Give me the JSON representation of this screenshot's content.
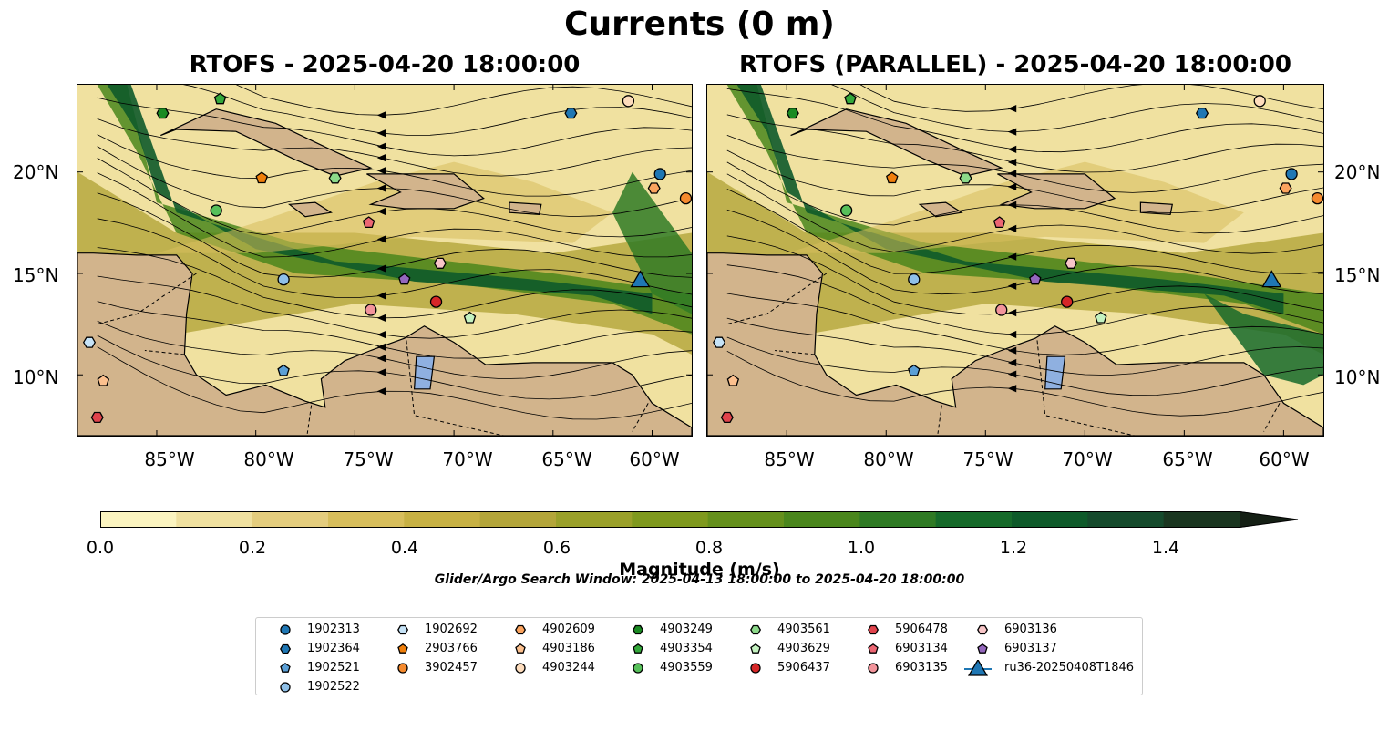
{
  "title": "Currents (0 m)",
  "panels": {
    "left": {
      "title": "RTOFS - 2025-04-20 18:00:00"
    },
    "right": {
      "title": "RTOFS (PARALLEL) - 2025-04-20 18:00:00"
    }
  },
  "map_extent": {
    "lon": [
      -89,
      -58
    ],
    "lat": [
      7,
      24.3
    ]
  },
  "lat_ticks": [
    {
      "value": 20,
      "label": "20°N"
    },
    {
      "value": 15,
      "label": "15°N"
    },
    {
      "value": 10,
      "label": "10°N"
    }
  ],
  "lon_ticks": [
    {
      "value": -85,
      "label": "85°W"
    },
    {
      "value": -80,
      "label": "80°W"
    },
    {
      "value": -75,
      "label": "75°W"
    },
    {
      "value": -70,
      "label": "70°W"
    },
    {
      "value": -65,
      "label": "65°W"
    },
    {
      "value": -60,
      "label": "60°W"
    }
  ],
  "colorbar": {
    "label": "Magnitude (m/s)",
    "range": [
      0,
      1.5
    ],
    "extend": "max",
    "ticks": [
      "0.0",
      "0.2",
      "0.4",
      "0.6",
      "0.8",
      "1.0",
      "1.2",
      "1.4"
    ],
    "colors": [
      "#fbf4c0",
      "#f0e1a0",
      "#e4cd7e",
      "#d7be5c",
      "#c7b144",
      "#b3a53a",
      "#9aa02a",
      "#7f991e",
      "#65901c",
      "#4a861c",
      "#2f7a24",
      "#166a2a",
      "#0e5a2a",
      "#154a2c",
      "#1a3620",
      "#141f14"
    ]
  },
  "search_window": "Glider/Argo Search Window: 2025-04-13 18:00:00 to 2025-04-20 18:00:00",
  "legend": [
    {
      "id": "1902313",
      "marker": "circle",
      "color": "#1f77b4"
    },
    {
      "id": "1902364",
      "marker": "hexagon",
      "color": "#1f77b4"
    },
    {
      "id": "1902521",
      "marker": "pentagon",
      "color": "#5b9fd6"
    },
    {
      "id": "1902522",
      "marker": "circle",
      "color": "#8fc0e8"
    },
    {
      "id": "1902692",
      "marker": "hexagon",
      "color": "#c6e3f7"
    },
    {
      "id": "2903766",
      "marker": "pentagon",
      "color": "#f07f0c"
    },
    {
      "id": "3902457",
      "marker": "circle",
      "color": "#f58a2e"
    },
    {
      "id": "4902609",
      "marker": "hexagon",
      "color": "#fba35e"
    },
    {
      "id": "4903186",
      "marker": "pentagon",
      "color": "#fcc08e"
    },
    {
      "id": "4903244",
      "marker": "circle",
      "color": "#fddcbc"
    },
    {
      "id": "4903249",
      "marker": "hexagon",
      "color": "#1b8a22"
    },
    {
      "id": "4903354",
      "marker": "pentagon",
      "color": "#34a83a"
    },
    {
      "id": "4903559",
      "marker": "circle",
      "color": "#57c05a"
    },
    {
      "id": "4903561",
      "marker": "hexagon",
      "color": "#8cd98a"
    },
    {
      "id": "4903629",
      "marker": "pentagon",
      "color": "#c4f2c0"
    },
    {
      "id": "5906437",
      "marker": "circle",
      "color": "#d62728"
    },
    {
      "id": "5906478",
      "marker": "hexagon",
      "color": "#e0434c"
    },
    {
      "id": "6903134",
      "marker": "pentagon",
      "color": "#ec6673"
    },
    {
      "id": "6903135",
      "marker": "circle",
      "color": "#f2949b"
    },
    {
      "id": "6903136",
      "marker": "hexagon",
      "color": "#f8c6c8"
    },
    {
      "id": "6903137",
      "marker": "pentagon",
      "color": "#9467bd"
    },
    {
      "id": "ru36-20250408T1846",
      "marker": "triangle",
      "color": "#1f77b4"
    }
  ],
  "floats": [
    {
      "id": "1902313",
      "lon": -59.6,
      "lat": 19.9
    },
    {
      "id": "1902364",
      "lon": -64.1,
      "lat": 22.9
    },
    {
      "id": "1902521",
      "lon": -78.6,
      "lat": 10.2
    },
    {
      "id": "1902522",
      "lon": -78.6,
      "lat": 14.7
    },
    {
      "id": "1902692",
      "lon": -88.4,
      "lat": 11.6
    },
    {
      "id": "2903766",
      "lon": -79.7,
      "lat": 19.7
    },
    {
      "id": "3902457",
      "lon": -58.3,
      "lat": 18.7
    },
    {
      "id": "4902609",
      "lon": -59.9,
      "lat": 19.2
    },
    {
      "id": "4903186",
      "lon": -87.7,
      "lat": 9.7
    },
    {
      "id": "4903244",
      "lon": -61.2,
      "lat": 23.5
    },
    {
      "id": "4903249",
      "lon": -84.7,
      "lat": 22.9
    },
    {
      "id": "4903354",
      "lon": -81.8,
      "lat": 23.6
    },
    {
      "id": "4903559",
      "lon": -82.0,
      "lat": 18.1
    },
    {
      "id": "4903561",
      "lon": -76.0,
      "lat": 19.7
    },
    {
      "id": "4903629",
      "lon": -69.2,
      "lat": 12.8
    },
    {
      "id": "5906437",
      "lon": -70.9,
      "lat": 13.6
    },
    {
      "id": "5906478",
      "lon": -88.0,
      "lat": 7.9
    },
    {
      "id": "6903134",
      "lon": -74.3,
      "lat": 17.5
    },
    {
      "id": "6903135",
      "lon": -74.2,
      "lat": 13.2
    },
    {
      "id": "6903136",
      "lon": -70.7,
      "lat": 15.5
    },
    {
      "id": "6903137",
      "lon": -72.5,
      "lat": 14.7
    },
    {
      "id": "ru36-20250408T1846",
      "lon": -60.6,
      "lat": 14.7
    }
  ]
}
